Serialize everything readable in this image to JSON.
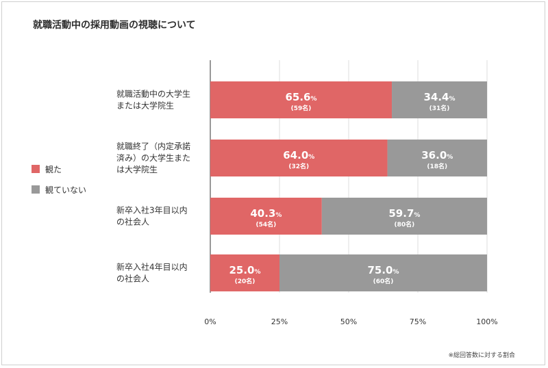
{
  "chart_data": {
    "type": "bar",
    "orientation": "horizontal",
    "stacked": true,
    "title": "就職活動中の採用動画の視聴について",
    "categories": [
      [
        "就職活動中の大学生",
        "または大学院生"
      ],
      [
        "就職終了（内定承諾",
        "済み）の大学生また",
        "は大学院生"
      ],
      [
        "新卒入社3年目以内",
        "の社会人"
      ],
      [
        "新卒入社4年目以内",
        "の社会人"
      ]
    ],
    "series": [
      {
        "name": "観た",
        "color": "#e06666",
        "values": [
          65.6,
          64.0,
          40.3,
          25.0
        ],
        "counts": [
          "(59名)",
          "(32名)",
          "(54名)",
          "(20名)"
        ]
      },
      {
        "name": "観ていない",
        "color": "#999999",
        "values": [
          34.4,
          36.0,
          59.7,
          75.0
        ],
        "counts": [
          "(31名)",
          "(18名)",
          "(80名)",
          "(60名)"
        ]
      }
    ],
    "value_labels": [
      [
        "65.6",
        "34.4"
      ],
      [
        "64.0",
        "36.0"
      ],
      [
        "40.3",
        "59.7"
      ],
      [
        "25.0",
        "75.0"
      ]
    ],
    "percent_sign": "%",
    "xlim": [
      0,
      100
    ],
    "xticks": [
      "0%",
      "25%",
      "50%",
      "75%",
      "100%"
    ],
    "grid": true,
    "legend_position": "left"
  },
  "note": "※総回答数に対する割合"
}
